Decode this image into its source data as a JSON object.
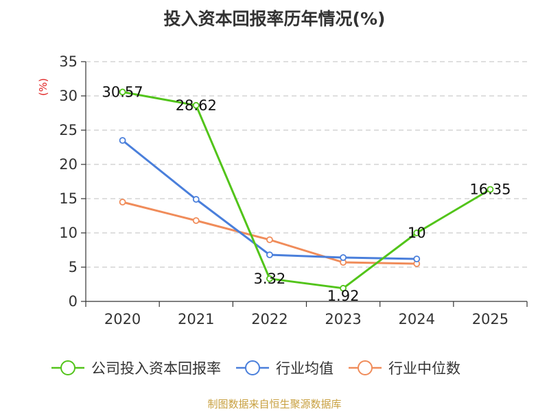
{
  "chart_data": {
    "type": "line",
    "title": "投入资本回报率历年情况(%)",
    "ylabel": "(%)",
    "xlabel": "",
    "ylim": [
      0,
      35
    ],
    "yticks": [
      0,
      5,
      10,
      15,
      20,
      25,
      30,
      35
    ],
    "categories": [
      "2020",
      "2021",
      "2022",
      "2023",
      "2024",
      "2025"
    ],
    "grid": true,
    "legend_position": "bottom",
    "series": [
      {
        "name": "公司投入资本回报率",
        "color": "#52c41a",
        "values": [
          30.57,
          28.62,
          3.32,
          1.92,
          10,
          16.35
        ],
        "labels": [
          "30.57",
          "28.62",
          "3.32",
          "1.92",
          "10",
          "16.35"
        ]
      },
      {
        "name": "行业均值",
        "color": "#4a7fdb",
        "values": [
          23.5,
          14.9,
          6.8,
          6.4,
          6.2,
          null
        ]
      },
      {
        "name": "行业中位数",
        "color": "#f08c5a",
        "values": [
          14.5,
          11.8,
          9.0,
          5.7,
          5.5,
          null
        ]
      }
    ],
    "unit_color": "#e02020",
    "source": "制图数据来自恒生聚源数据库",
    "source_color": "#c8a040"
  }
}
